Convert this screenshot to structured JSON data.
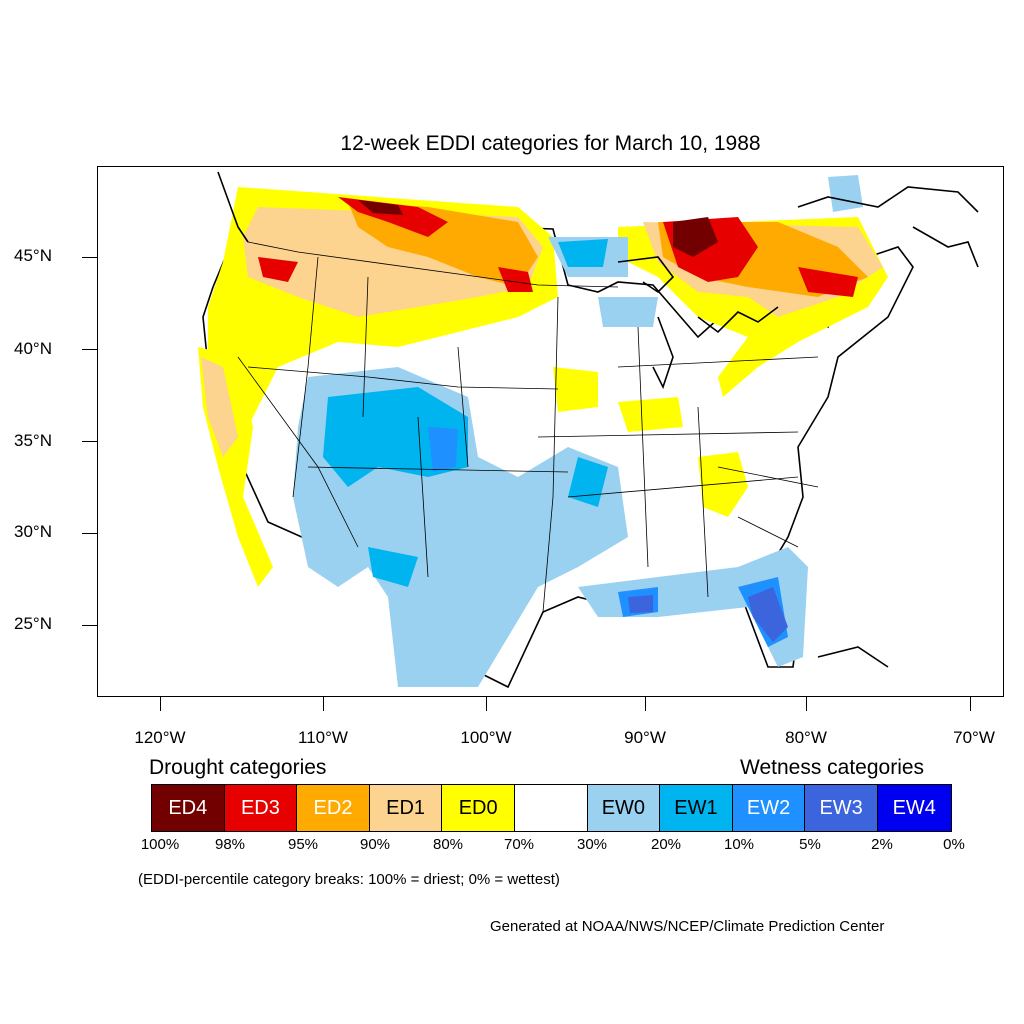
{
  "title": "12-week EDDI categories for March 10, 1988",
  "lat_labels": [
    "45°N",
    "40°N",
    "35°N",
    "30°N",
    "25°N"
  ],
  "lon_labels": [
    "120°W",
    "110°W",
    "100°W",
    "90°W",
    "80°W",
    "70°W"
  ],
  "drought_heading": "Drought categories",
  "wetness_heading": "Wetness categories",
  "categories": [
    {
      "label": "ED4",
      "color": "#730000",
      "text_color": "#ffffff"
    },
    {
      "label": "ED3",
      "color": "#e60000",
      "text_color": "#ffffff"
    },
    {
      "label": "ED2",
      "color": "#ffaa00",
      "text_color": "#ffffff"
    },
    {
      "label": "ED1",
      "color": "#fcd38f",
      "text_color": "#000000"
    },
    {
      "label": "ED0",
      "color": "#ffff00",
      "text_color": "#000000"
    },
    {
      "label": "",
      "color": "#ffffff",
      "text_color": "#000000"
    },
    {
      "label": "EW0",
      "color": "#9ad1f0",
      "text_color": "#000000"
    },
    {
      "label": "EW1",
      "color": "#00b4f0",
      "text_color": "#000000"
    },
    {
      "label": "EW2",
      "color": "#1e90ff",
      "text_color": "#ffffff"
    },
    {
      "label": "EW3",
      "color": "#3c64dc",
      "text_color": "#ffffff"
    },
    {
      "label": "EW4",
      "color": "#0000f0",
      "text_color": "#ffffff"
    }
  ],
  "breaks": [
    "100%",
    "98%",
    "95%",
    "90%",
    "80%",
    "70%",
    "30%",
    "20%",
    "10%",
    "5%",
    "2%",
    "0%"
  ],
  "note": "(EDDI-percentile category breaks: 100% = driest; 0% = wettest)",
  "credit": "Generated at NOAA/NWS/NCEP/Climate Prediction Center"
}
